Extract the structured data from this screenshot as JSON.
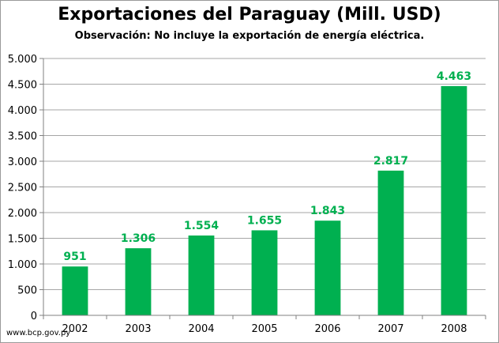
{
  "chart_data": {
    "type": "bar",
    "title": "Exportaciones del Paraguay (Mill. USD)",
    "subtitle": "Observación: No incluye la exportación de energía eléctrica.",
    "xlabel": "",
    "ylabel": "",
    "categories": [
      "2002",
      "2003",
      "2004",
      "2005",
      "2006",
      "2007",
      "2008"
    ],
    "values": [
      951,
      1306,
      1554,
      1655,
      1843,
      2817,
      4463
    ],
    "data_labels": [
      "951",
      "1.306",
      "1.554",
      "1.655",
      "1.843",
      "2.817",
      "4.463"
    ],
    "ylim": [
      0,
      5000
    ],
    "yticks": [
      0,
      500,
      1000,
      1500,
      2000,
      2500,
      3000,
      3500,
      4000,
      4500,
      5000
    ],
    "ytick_labels": [
      "0",
      "500",
      "1.000",
      "1.500",
      "2.000",
      "2.500",
      "3.000",
      "3.500",
      "4.000",
      "4.500",
      "5.000"
    ],
    "grid": true,
    "legend": "none",
    "bar_color": "#00b050",
    "label_color": "#00b050",
    "grid_color": "#a6a6a6"
  },
  "footer": {
    "source": "www.bcp.gov.py"
  }
}
